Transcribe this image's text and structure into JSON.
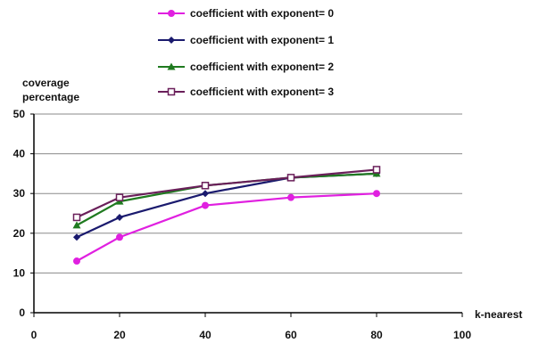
{
  "chart_data": {
    "type": "line",
    "title": "",
    "xlabel": "k-nearest",
    "ylabel": [
      "coverage",
      "percentage"
    ],
    "xlim": [
      0,
      100
    ],
    "ylim": [
      0,
      50
    ],
    "xticks": [
      0,
      20,
      40,
      60,
      80,
      100
    ],
    "yticks": [
      0,
      10,
      20,
      30,
      40,
      50
    ],
    "grid": "horizontal",
    "legend_position": "top",
    "x": [
      10,
      20,
      40,
      60,
      80
    ],
    "series": [
      {
        "name": "coefficient with exponent= 0",
        "color": "#e020e0",
        "marker": "circle",
        "values": [
          13,
          19,
          27,
          29,
          30
        ]
      },
      {
        "name": "coefficient with exponent= 1",
        "color": "#1a1a6e",
        "marker": "diamond",
        "values": [
          19,
          24,
          30,
          34,
          35
        ]
      },
      {
        "name": "coefficient with exponent= 2",
        "color": "#1f7a1f",
        "marker": "triangle",
        "values": [
          22,
          28,
          32,
          34,
          35
        ]
      },
      {
        "name": "coefficient with exponent= 3",
        "color": "#6a1f5a",
        "marker": "square-open",
        "values": [
          24,
          29,
          32,
          34,
          36
        ]
      }
    ]
  }
}
